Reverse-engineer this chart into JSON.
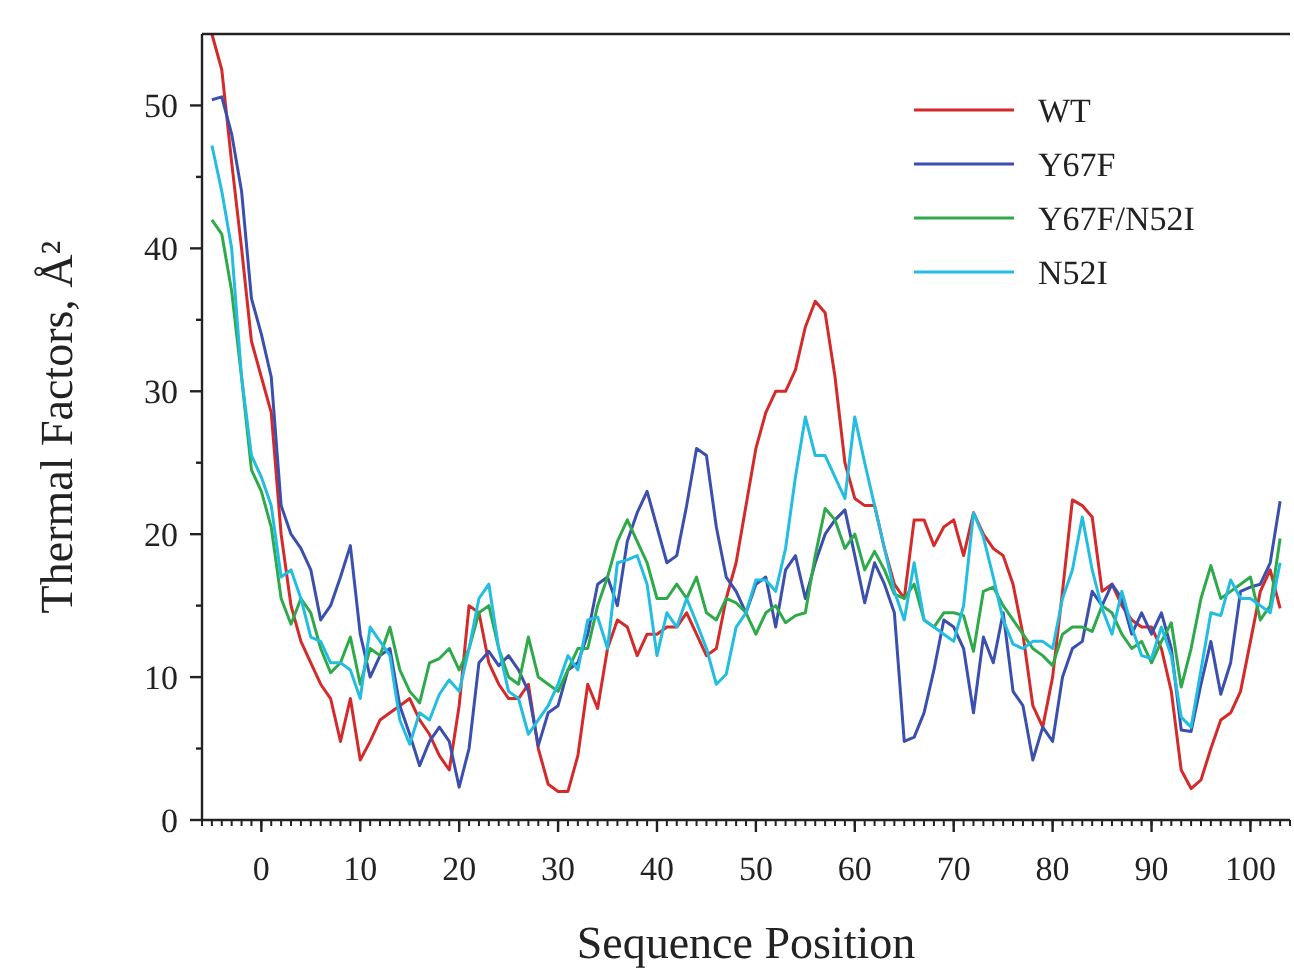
{
  "chart_data": {
    "type": "line",
    "xlabel": "Sequence Position",
    "ylabel": "Thermal Factors, Å²",
    "legend": "top right",
    "grid": false,
    "xlim": [
      -6,
      104
    ],
    "ylim": [
      0,
      55
    ],
    "xticks": [
      0,
      10,
      20,
      30,
      40,
      50,
      60,
      70,
      80,
      90,
      100
    ],
    "yticks": [
      0,
      {
        "value": 5,
        "label": null
      },
      10,
      {
        "value": 15,
        "label": null
      },
      20,
      {
        "value": 25,
        "label": null
      },
      30,
      {
        "value": 35,
        "label": null
      },
      40,
      {
        "value": 45,
        "label": null
      },
      50
    ],
    "x": [
      -5,
      -4,
      -3,
      -2,
      -1,
      0,
      1,
      2,
      3,
      4,
      5,
      6,
      7,
      8,
      9,
      10,
      11,
      12,
      13,
      14,
      15,
      16,
      17,
      18,
      19,
      20,
      21,
      22,
      23,
      24,
      25,
      26,
      27,
      28,
      29,
      30,
      31,
      32,
      33,
      34,
      35,
      36,
      37,
      38,
      39,
      40,
      41,
      42,
      43,
      44,
      45,
      46,
      47,
      48,
      49,
      50,
      51,
      52,
      53,
      54,
      55,
      56,
      57,
      58,
      59,
      60,
      61,
      62,
      63,
      64,
      65,
      66,
      67,
      68,
      69,
      70,
      71,
      72,
      73,
      74,
      75,
      76,
      77,
      78,
      79,
      80,
      81,
      82,
      83,
      84,
      85,
      86,
      87,
      88,
      89,
      90,
      91,
      92,
      93,
      94,
      95,
      96,
      97,
      98,
      99,
      100,
      101,
      102,
      103
    ],
    "series": [
      {
        "name": "WT",
        "color": "#d42a2a",
        "values": [
          55,
          52.5,
          46,
          40,
          33.5,
          31,
          28.5,
          20,
          15,
          12.5,
          11,
          9.5,
          8.5,
          5.5,
          8.5,
          4.2,
          5.5,
          7,
          7.5,
          8,
          8.5,
          7,
          6,
          4.5,
          3.5,
          8,
          15,
          14.5,
          11,
          9.5,
          8.5,
          8.5,
          9.5,
          5,
          2.5,
          2,
          2,
          4.5,
          9.5,
          7.8,
          12,
          14,
          13.5,
          11.5,
          13,
          13,
          13.5,
          13.5,
          14.5,
          13,
          11.5,
          12,
          15.5,
          18,
          22,
          26,
          28.5,
          30,
          30,
          31.5,
          34.5,
          36.3,
          35.5,
          31,
          25,
          22.5,
          22,
          22,
          19,
          16.5,
          15.5,
          21,
          21,
          19.2,
          20.5,
          21,
          18.5,
          21.5,
          20,
          19,
          18.5,
          16.5,
          13,
          8,
          6.5,
          10,
          16,
          22.4,
          22,
          21.2,
          16,
          16.5,
          15,
          14,
          13.5,
          13.5,
          12,
          9,
          3.5,
          2.2,
          2.8,
          5,
          7,
          7.5,
          9,
          12.5,
          16,
          17.5,
          14.8
        ]
      },
      {
        "name": "Y67F",
        "color": "#3a4fae",
        "values": [
          50.4,
          50.6,
          48,
          44,
          36.5,
          34,
          31,
          22,
          20,
          19,
          17.5,
          14,
          15,
          17,
          19.2,
          13,
          10,
          11.5,
          12,
          8,
          6,
          3.8,
          5.5,
          6.5,
          5.5,
          2.3,
          5,
          11,
          11.8,
          10.8,
          11.5,
          10.5,
          9,
          5.2,
          7.5,
          8,
          10.5,
          11,
          13,
          16.5,
          17,
          15,
          19.5,
          21.5,
          23,
          20.5,
          18,
          18.5,
          22,
          26,
          25.5,
          20.5,
          17,
          16,
          14.5,
          16.5,
          17,
          13.5,
          17.5,
          18.5,
          15.5,
          18,
          20,
          21,
          21.7,
          18.5,
          15.2,
          18,
          16.5,
          14.5,
          5.5,
          5.8,
          7.5,
          10.5,
          14,
          13.5,
          12,
          7.5,
          12.8,
          11,
          14.5,
          9,
          8,
          4.2,
          6.5,
          5.5,
          10,
          12,
          12.5,
          16,
          15,
          16.5,
          15.5,
          13,
          14.5,
          13,
          14.5,
          12,
          6.3,
          6.2,
          9.5,
          12.5,
          8.8,
          11,
          16,
          16.3,
          16.5,
          18,
          22.3
        ]
      },
      {
        "name": "Y67F/N52I",
        "color": "#2eaa4a",
        "values": [
          42,
          41,
          37,
          31,
          24.5,
          23,
          20.5,
          15.5,
          13.7,
          15.5,
          14.5,
          12,
          10.3,
          11,
          12.8,
          9.5,
          12,
          11.5,
          13.5,
          10.5,
          9,
          8.2,
          11,
          11.3,
          12,
          10.5,
          12,
          14.5,
          15,
          12,
          10,
          9.5,
          12.8,
          10,
          9.5,
          9,
          10.5,
          12,
          12,
          15,
          17,
          19.5,
          21,
          19.5,
          18,
          15.5,
          15.5,
          16.5,
          15.5,
          17,
          14.5,
          14,
          15.5,
          15.2,
          14.5,
          13,
          14.5,
          15,
          13.8,
          14.3,
          14.5,
          18.5,
          21.8,
          21,
          19,
          20,
          17.5,
          18.8,
          17.5,
          15.8,
          15.5,
          16.5,
          14,
          13.5,
          14.5,
          14.5,
          14.3,
          11.8,
          16,
          16.3,
          15,
          14,
          13,
          12,
          11.5,
          10.8,
          13,
          13.5,
          13.5,
          13.2,
          15,
          14.5,
          13,
          12,
          12.5,
          11,
          12.5,
          13.8,
          9.3,
          12,
          15.5,
          17.8,
          15.5,
          16,
          16.5,
          17,
          14,
          15,
          19.7
        ]
      },
      {
        "name": "N52I",
        "color": "#22bde0",
        "values": [
          47.2,
          44,
          40,
          31,
          25.5,
          24,
          22,
          17,
          17.5,
          15.5,
          12.8,
          12.5,
          11,
          11,
          10.5,
          8.5,
          13.5,
          12.5,
          11.5,
          7,
          5.3,
          7.5,
          7,
          8.8,
          9.8,
          9,
          12,
          15.5,
          16.5,
          12,
          9,
          8.5,
          6,
          7,
          8,
          9.5,
          11.5,
          10.5,
          14,
          14.2,
          12,
          18,
          18.2,
          18.5,
          16.5,
          11.5,
          14.5,
          13.5,
          15.5,
          13.8,
          12,
          9.5,
          10.2,
          13.5,
          14.5,
          16.8,
          16.8,
          16,
          19,
          24,
          28.2,
          25.5,
          25.5,
          24,
          22.5,
          28.2,
          25,
          22,
          19,
          16,
          14,
          18,
          14,
          13.5,
          13,
          12.5,
          15,
          21.5,
          19.8,
          17,
          14,
          12.3,
          12,
          12.5,
          12.5,
          12,
          15.5,
          17.5,
          21.2,
          17.5,
          14.8,
          13,
          16,
          13.5,
          11.5,
          11.3,
          13.5,
          11.5,
          7.2,
          6.5,
          10.5,
          14.5,
          14.3,
          16.8,
          15.5,
          15.5,
          15,
          14.5,
          18
        ]
      }
    ]
  }
}
